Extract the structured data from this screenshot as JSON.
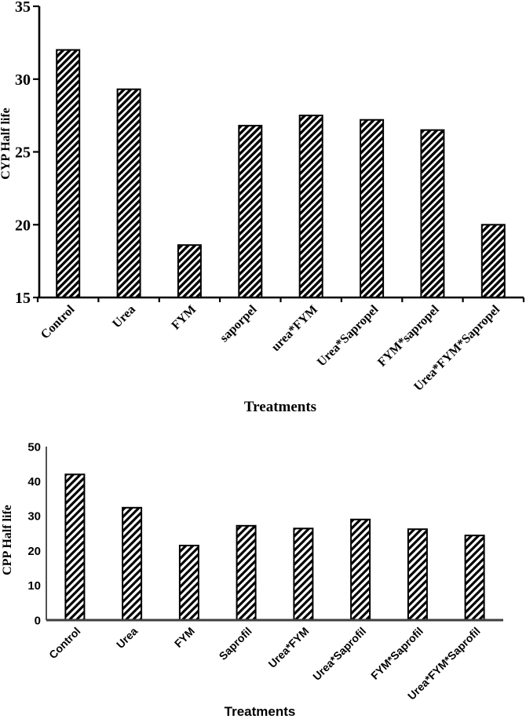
{
  "figure": {
    "background": "#ffffff",
    "bar_fill_style": "diagonal-hatch",
    "accent_color": "#000000"
  },
  "chart_data": [
    {
      "type": "bar",
      "title": "",
      "ylabel": "CYP Half life",
      "xlabel": "Treatments",
      "categories": [
        "Control",
        "Urea",
        "FYM",
        "saporpel",
        "urea*FYM",
        "Urea*Sapropel",
        "FYM*sapropel",
        "Urea*FYM*Sapropel"
      ],
      "values": [
        32,
        29.3,
        18.6,
        26.8,
        27.5,
        27.2,
        26.5,
        20
      ],
      "ylim": [
        15,
        35
      ],
      "yticks": [
        35,
        30,
        25,
        20,
        15
      ],
      "grid": false,
      "legend": false,
      "bar_fill": "diagonal-hatch",
      "bar_color": "#000000",
      "axis_color": "#000000",
      "text_color": "#000000"
    },
    {
      "type": "bar",
      "title": "",
      "ylabel": "CPP Half life",
      "xlabel": "Treatments",
      "categories": [
        "Control",
        "Urea",
        "FYM",
        "Saprofil",
        "Urea*FYM",
        "Urea*Saprofil",
        "FYM*Saprofil",
        "Urea*FYM*Saprofil"
      ],
      "values": [
        42,
        32.4,
        21.5,
        27.2,
        26.4,
        29,
        26.2,
        24.4
      ],
      "ylim": [
        0,
        50
      ],
      "yticks": [
        50,
        40,
        30,
        20,
        10,
        0
      ],
      "grid": false,
      "legend": false,
      "bar_fill": "diagonal-hatch",
      "bar_color": "#000000",
      "axis_color": "#3f3f3f",
      "text_color": "#000000"
    }
  ]
}
